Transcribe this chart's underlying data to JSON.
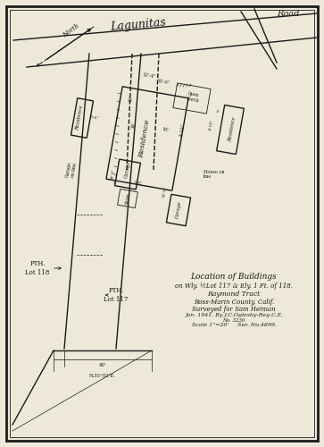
{
  "bg_color": "#ede8d8",
  "ink_color": "#1a1a1a",
  "title_lines": [
    "Location of Buildings",
    "on Wly. ½Lot 117 & Ely. 1 Ft. of 118.",
    "Raymond Tract",
    "Ross-Marin County, Calif.",
    "Surveyed for Sam Heiman",
    "Jan. 1941. By J.C.Oglesby-Reg.C.E.",
    "No. 3230",
    "Scale 1\"=20'     Sur. No.4899."
  ],
  "road_label": "Road",
  "lagunitas_label": "Lagunitas",
  "north_label": "North"
}
